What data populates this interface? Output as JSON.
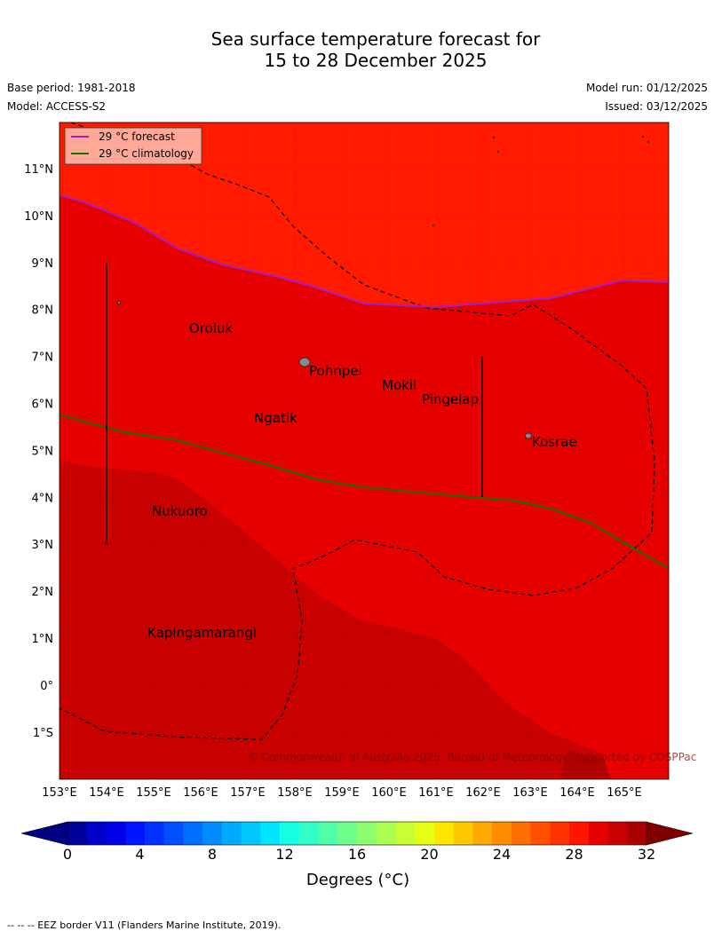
{
  "title": {
    "line1": "Sea surface temperature forecast for",
    "line2": "15 to 28 December 2025"
  },
  "meta": {
    "base_period": "Base period: 1981-2018",
    "model": "Model: ACCESS-S2",
    "model_run": "Model run: 01/12/2025",
    "issued": "Issued: 03/12/2025"
  },
  "legend": {
    "forecast": "29 °C  forecast",
    "climatology": "29 °C  climatology",
    "forecast_color": "#a020c8",
    "climatology_color": "#1a6e00"
  },
  "axes": {
    "lon_labels": [
      "153°E",
      "154°E",
      "155°E",
      "156°E",
      "157°E",
      "158°E",
      "159°E",
      "160°E",
      "161°E",
      "162°E",
      "163°E",
      "164°E",
      "165°E"
    ],
    "lat_labels": [
      "11°N",
      "10°N",
      "9°N",
      "8°N",
      "7°N",
      "6°N",
      "5°N",
      "4°N",
      "3°N",
      "2°N",
      "1°N",
      "0°",
      "1°S"
    ]
  },
  "places": [
    {
      "name": "Oroluk"
    },
    {
      "name": "Pohnpei"
    },
    {
      "name": "Mokil"
    },
    {
      "name": "Pingelap"
    },
    {
      "name": "Ngatik"
    },
    {
      "name": "Kosrae"
    },
    {
      "name": "Nukuoro"
    },
    {
      "name": "Kapingamarangi"
    }
  ],
  "copyright": "© Commonwealth of Australia 2025, Bureau of Meteorology, supported by COSPPac",
  "colorbar": {
    "tick_labels": [
      "0",
      "4",
      "8",
      "12",
      "16",
      "20",
      "24",
      "28",
      "32"
    ],
    "label": "Degrees (°C)",
    "colors": [
      "#00009a",
      "#0000c8",
      "#0000e6",
      "#0014ff",
      "#0032ff",
      "#0050ff",
      "#006eff",
      "#008cff",
      "#00aaff",
      "#00c8ff",
      "#00e6ff",
      "#14ffe6",
      "#32ffc8",
      "#50ffaa",
      "#6eff8c",
      "#8cff6e",
      "#aaff50",
      "#c8ff32",
      "#e6ff14",
      "#ffe600",
      "#ffc800",
      "#ffaa00",
      "#ff8c00",
      "#ff6e00",
      "#ff5000",
      "#ff3200",
      "#ff1400",
      "#e60000",
      "#c80000",
      "#aa0000"
    ],
    "under_color": "#000080",
    "over_color": "#800000"
  },
  "map_colors": {
    "band_28_5": "#ff1a00",
    "band_29": "#e60000",
    "band_29_5": "#c80000",
    "band_30": "#b00000"
  },
  "footer": "--  --  -- EEZ border V11 (Flanders Marine Institute, 2019)."
}
